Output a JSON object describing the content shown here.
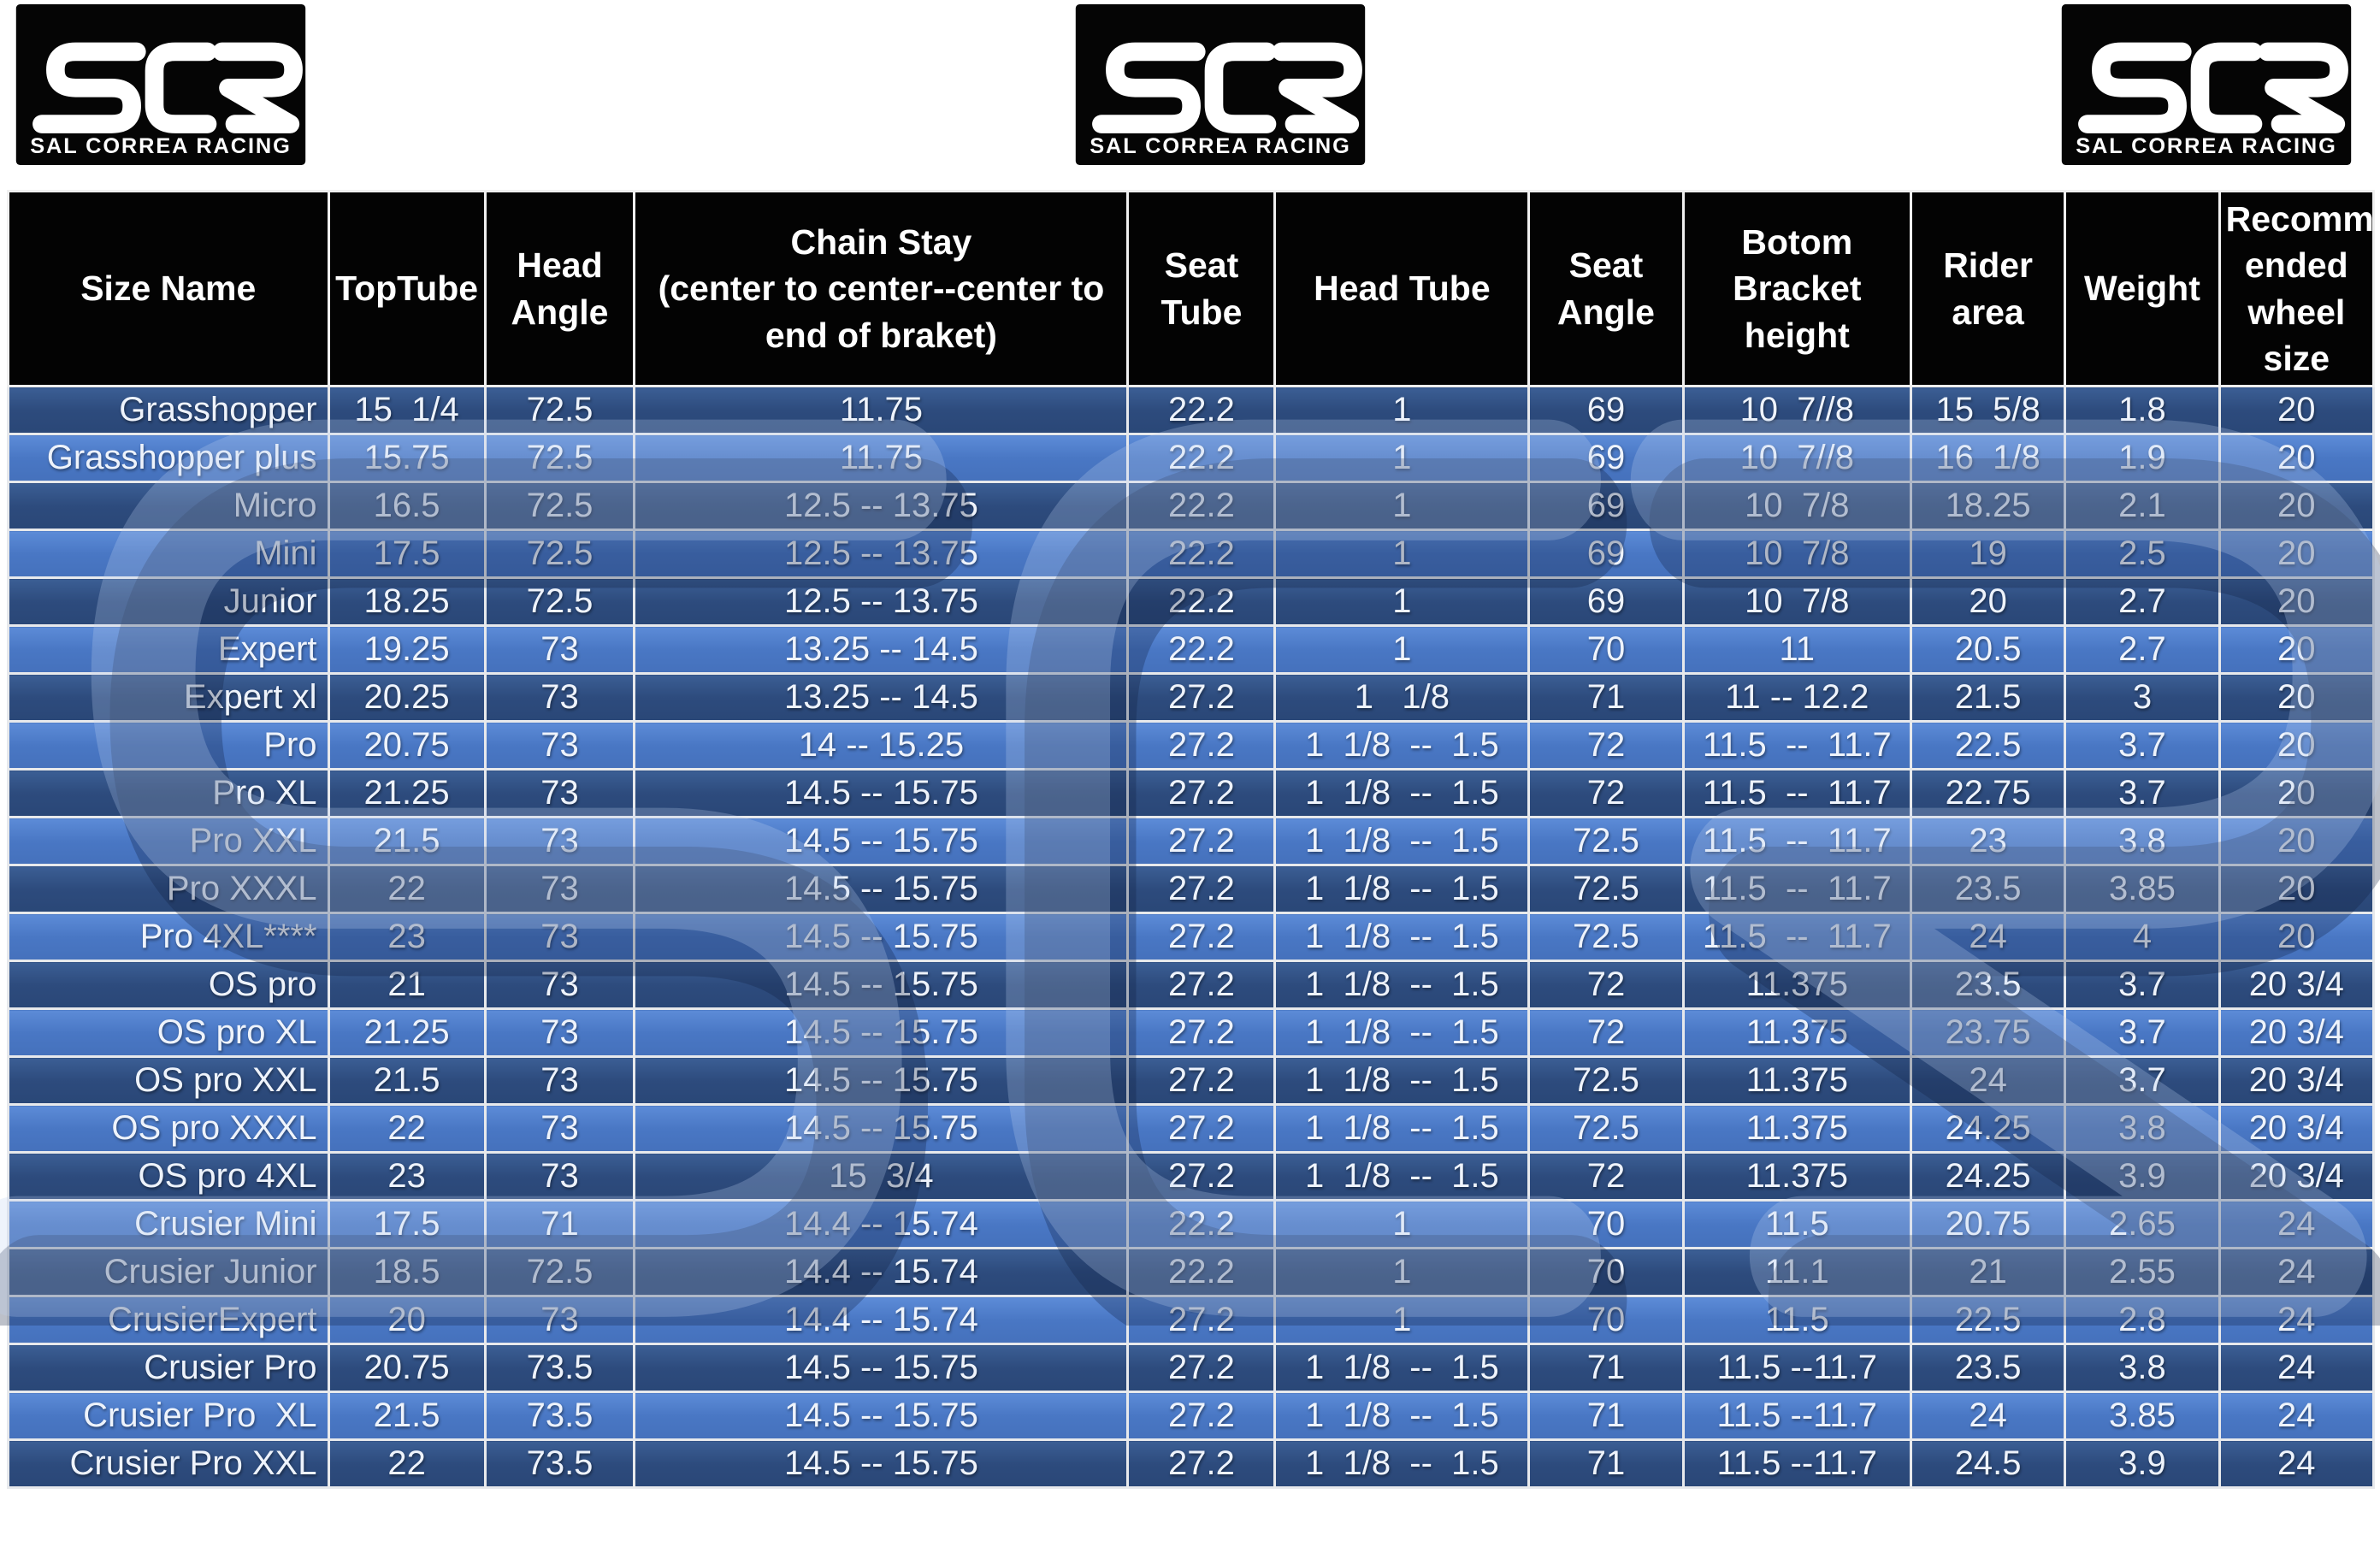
{
  "brand": {
    "name": "SCR",
    "subtext": "SAL CORREA RACING"
  },
  "colors": {
    "header_bg": "#030303",
    "row_dark": "#2d4b7d",
    "row_light": "#4977c4",
    "grid_line": "#e7e9ec",
    "cell_text": "#eef3fb"
  },
  "table": {
    "columns": [
      {
        "label": "Size Name",
        "width": "13.5%"
      },
      {
        "label": "TopTube",
        "width": "6.6%"
      },
      {
        "label": "Head Angle",
        "width": "6.3%"
      },
      {
        "label": "Chain Stay\n(center to center--center to end of braket)",
        "width": "20.8%"
      },
      {
        "label": "Seat Tube",
        "width": "6.2%"
      },
      {
        "label": "Head Tube",
        "width": "10.7%"
      },
      {
        "label": "Seat Angle",
        "width": "6.5%"
      },
      {
        "label": "Botom Bracket height",
        "width": "9.6%"
      },
      {
        "label": "Rider area",
        "width": "6.5%"
      },
      {
        "label": "Weight",
        "width": "6.5%"
      },
      {
        "label": "Recomm ended wheel size",
        "width": "6.5%"
      }
    ],
    "rows": [
      [
        "Grasshopper",
        "15  1/4",
        "72.5",
        "11.75",
        "22.2",
        "1",
        "69",
        "10  7//8",
        "15  5/8",
        "1.8",
        "20"
      ],
      [
        "Grasshopper plus",
        "15.75",
        "72.5",
        "11.75",
        "22.2",
        "1",
        "69",
        "10  7//8",
        "16  1/8",
        "1.9",
        "20"
      ],
      [
        "Micro",
        "16.5",
        "72.5",
        "12.5 -- 13.75",
        "22.2",
        "1",
        "69",
        "10  7/8",
        "18.25",
        "2.1",
        "20"
      ],
      [
        "Mini",
        "17.5",
        "72.5",
        "12.5 -- 13.75",
        "22.2",
        "1",
        "69",
        "10  7/8",
        "19",
        "2.5",
        "20"
      ],
      [
        "Junior",
        "18.25",
        "72.5",
        "12.5 -- 13.75",
        "22.2",
        "1",
        "69",
        "10  7/8",
        "20",
        "2.7",
        "20"
      ],
      [
        "Expert",
        "19.25",
        "73",
        "13.25 -- 14.5",
        "22.2",
        "1",
        "70",
        "11",
        "20.5",
        "2.7",
        "20"
      ],
      [
        "Expert xl",
        "20.25",
        "73",
        "13.25 -- 14.5",
        "27.2",
        "1   1/8",
        "71",
        "11 -- 12.2",
        "21.5",
        "3",
        "20"
      ],
      [
        "Pro",
        "20.75",
        "73",
        "14 -- 15.25",
        "27.2",
        "1  1/8  --  1.5",
        "72",
        "11.5  --  11.7",
        "22.5",
        "3.7",
        "20"
      ],
      [
        "Pro XL",
        "21.25",
        "73",
        "14.5 -- 15.75",
        "27.2",
        "1  1/8  --  1.5",
        "72",
        "11.5  --  11.7",
        "22.75",
        "3.7",
        "20"
      ],
      [
        "Pro XXL",
        "21.5",
        "73",
        "14.5 -- 15.75",
        "27.2",
        "1  1/8  --  1.5",
        "72.5",
        "11.5  --  11.7",
        "23",
        "3.8",
        "20"
      ],
      [
        "Pro XXXL",
        "22",
        "73",
        "14.5 -- 15.75",
        "27.2",
        "1  1/8  --  1.5",
        "72.5",
        "11.5  --  11.7",
        "23.5",
        "3.85",
        "20"
      ],
      [
        "Pro 4XL****",
        "23",
        "73",
        "14.5 -- 15.75",
        "27.2",
        "1  1/8  --  1.5",
        "72.5",
        "11.5  --  11.7",
        "24",
        "4",
        "20"
      ],
      [
        "OS pro",
        "21",
        "73",
        "14.5 -- 15.75",
        "27.2",
        "1  1/8  --  1.5",
        "72",
        "11.375",
        "23.5",
        "3.7",
        "20 3/4"
      ],
      [
        "OS pro XL",
        "21.25",
        "73",
        "14.5 -- 15.75",
        "27.2",
        "1  1/8  --  1.5",
        "72",
        "11.375",
        "23.75",
        "3.7",
        "20 3/4"
      ],
      [
        "OS pro XXL",
        "21.5",
        "73",
        "14.5 -- 15.75",
        "27.2",
        "1  1/8  --  1.5",
        "72.5",
        "11.375",
        "24",
        "3.7",
        "20 3/4"
      ],
      [
        "OS pro XXXL",
        "22",
        "73",
        "14.5 -- 15.75",
        "27.2",
        "1  1/8  --  1.5",
        "72.5",
        "11.375",
        "24.25",
        "3.8",
        "20 3/4"
      ],
      [
        "OS pro 4XL",
        "23",
        "73",
        "15  3/4",
        "27.2",
        "1  1/8  --  1.5",
        "72",
        "11.375",
        "24.25",
        "3.9",
        "20 3/4"
      ],
      [
        "Crusier Mini",
        "17.5",
        "71",
        "14.4 -- 15.74",
        "22.2",
        "1",
        "70",
        "11.5",
        "20.75",
        "2.65",
        "24"
      ],
      [
        "Crusier Junior",
        "18.5",
        "72.5",
        "14.4 -- 15.74",
        "22.2",
        "1",
        "70",
        "11.1",
        "21",
        "2.55",
        "24"
      ],
      [
        "CrusierExpert",
        "20",
        "73",
        "14.4 -- 15.74",
        "27.2",
        "1",
        "70",
        "11.5",
        "22.5",
        "2.8",
        "24"
      ],
      [
        "Crusier Pro",
        "20.75",
        "73.5",
        "14.5 -- 15.75",
        "27.2",
        "1  1/8  --  1.5",
        "71",
        "11.5 --11.7",
        "23.5",
        "3.8",
        "24"
      ],
      [
        "Crusier Pro  XL",
        "21.5",
        "73.5",
        "14.5 -- 15.75",
        "27.2",
        "1  1/8  --  1.5",
        "71",
        "11.5 --11.7",
        "24",
        "3.85",
        "24"
      ],
      [
        "Crusier Pro XXL",
        "22",
        "73.5",
        "14.5 -- 15.75",
        "27.2",
        "1  1/8  --  1.5",
        "71",
        "11.5 --11.7",
        "24.5",
        "3.9",
        "24"
      ]
    ]
  }
}
